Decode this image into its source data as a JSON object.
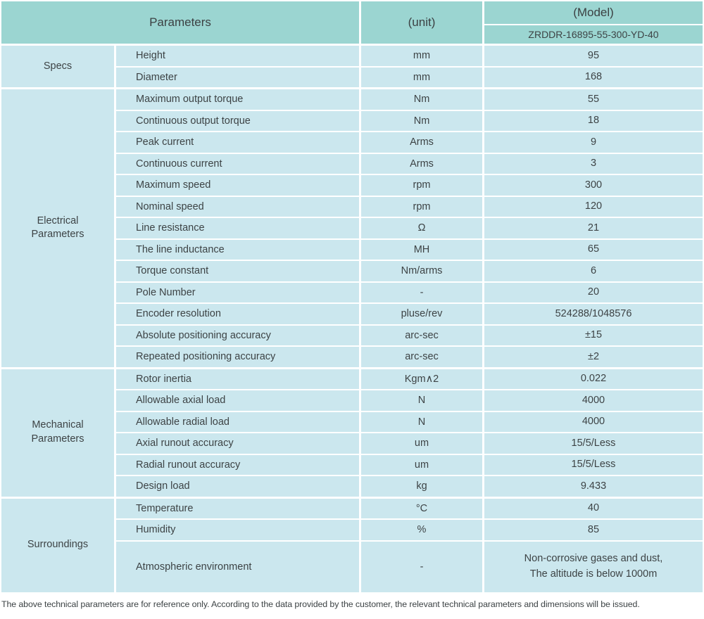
{
  "colors": {
    "header_bg": "#9bd5d1",
    "cell_bg": "#cbe7ee",
    "grid_gap": "#ffffff",
    "text": "#3d4345"
  },
  "header": {
    "parameters_label": "Parameters",
    "unit_label": "(unit)",
    "model_label": "(Model)",
    "model_value": "ZRDDR-16895-55-300-YD-40"
  },
  "sections": [
    {
      "category_lines": [
        "Specs"
      ],
      "rows": [
        {
          "param": "Height",
          "unit": "mm",
          "value_lines": [
            "95"
          ]
        },
        {
          "param": "Diameter",
          "unit": "mm",
          "value_lines": [
            "168"
          ]
        }
      ]
    },
    {
      "category_lines": [
        "Electrical",
        "Parameters"
      ],
      "rows": [
        {
          "param": "Maximum output torque",
          "unit": "Nm",
          "value_lines": [
            "55"
          ]
        },
        {
          "param": "Continuous output torque",
          "unit": "Nm",
          "value_lines": [
            "18"
          ]
        },
        {
          "param": "Peak current",
          "unit": "Arms",
          "value_lines": [
            "9"
          ]
        },
        {
          "param": "Continuous current",
          "unit": "Arms",
          "value_lines": [
            "3"
          ]
        },
        {
          "param": "Maximum speed",
          "unit": "rpm",
          "value_lines": [
            "300"
          ]
        },
        {
          "param": "Nominal speed",
          "unit": "rpm",
          "value_lines": [
            "120"
          ]
        },
        {
          "param": "Line resistance",
          "unit": "Ω",
          "value_lines": [
            "21"
          ]
        },
        {
          "param": "The line inductance",
          "unit": "MH",
          "value_lines": [
            "65"
          ]
        },
        {
          "param": "Torque constant",
          "unit": "Nm/arms",
          "value_lines": [
            "6"
          ]
        },
        {
          "param": "Pole Number",
          "unit": "-",
          "value_lines": [
            "20"
          ]
        },
        {
          "param": "Encoder resolution",
          "unit": "pluse/rev",
          "value_lines": [
            "524288/1048576"
          ]
        },
        {
          "param": "Absolute positioning accuracy",
          "unit": "arc-sec",
          "value_lines": [
            "±15"
          ]
        },
        {
          "param": "Repeated positioning accuracy",
          "unit": "arc-sec",
          "value_lines": [
            "±2"
          ]
        }
      ]
    },
    {
      "category_lines": [
        "Mechanical",
        "Parameters"
      ],
      "rows": [
        {
          "param": "Rotor inertia",
          "unit": "Kgm∧2",
          "value_lines": [
            "0.022"
          ]
        },
        {
          "param": "Allowable axial load",
          "unit": "N",
          "value_lines": [
            "4000"
          ]
        },
        {
          "param": "Allowable radial load",
          "unit": "N",
          "value_lines": [
            "4000"
          ]
        },
        {
          "param": "Axial runout accuracy",
          "unit": "um",
          "value_lines": [
            "15/5/Less"
          ]
        },
        {
          "param": "Radial runout accuracy",
          "unit": "um",
          "value_lines": [
            "15/5/Less"
          ]
        },
        {
          "param": "Design load",
          "unit": "kg",
          "value_lines": [
            "9.433"
          ]
        }
      ]
    },
    {
      "category_lines": [
        "Surroundings"
      ],
      "rows": [
        {
          "param": "Temperature",
          "unit": "°C",
          "value_lines": [
            "40"
          ]
        },
        {
          "param": "Humidity",
          "unit": "%",
          "value_lines": [
            "85"
          ]
        },
        {
          "param": "Atmospheric environment",
          "unit": "-",
          "value_lines": [
            "Non-corrosive gases and dust,",
            "The altitude is below 1000m"
          ],
          "tall": true
        }
      ]
    }
  ],
  "footnote": "The above technical parameters are for reference only. According to the data provided by the customer, the relevant technical parameters and dimensions will be issued."
}
